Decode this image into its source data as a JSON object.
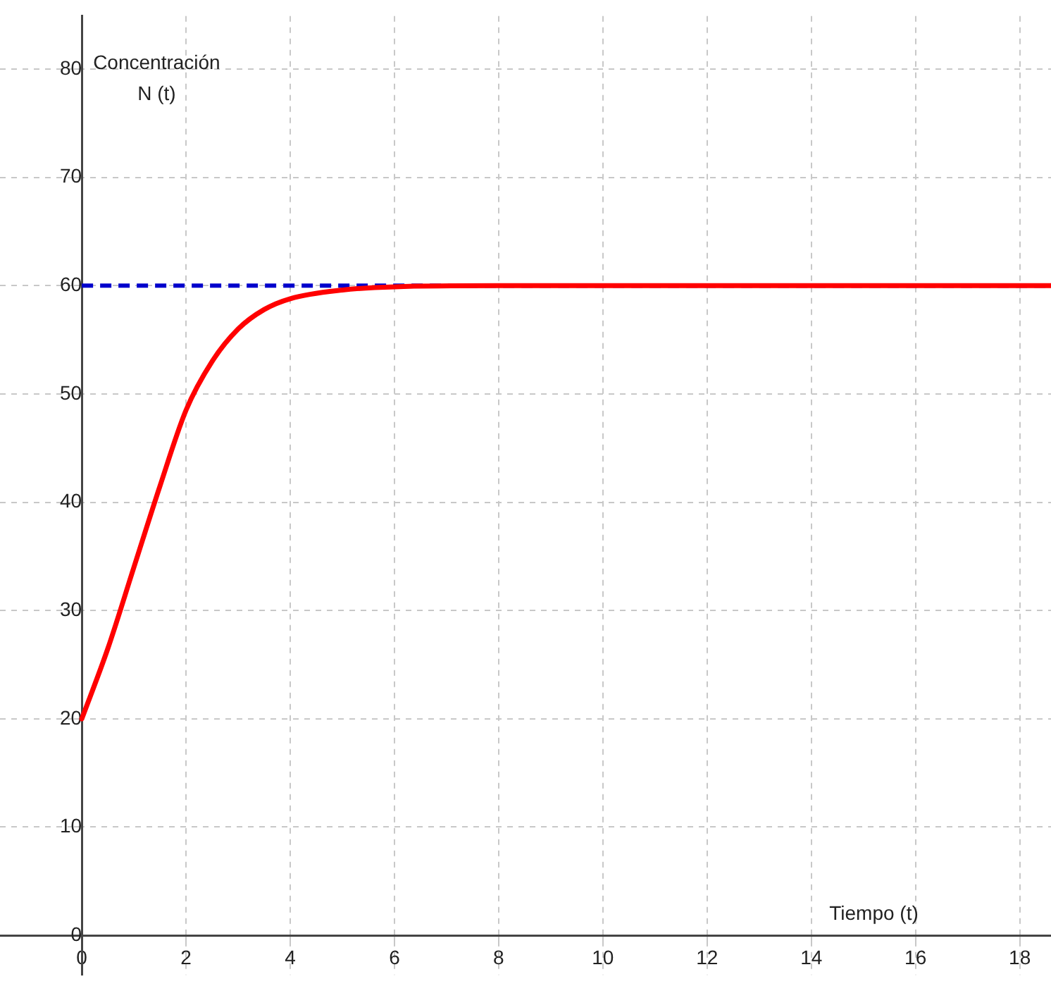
{
  "chart_data": {
    "type": "line",
    "xlabel": "Tiempo (t)",
    "ylabel": "Concentración\nN (t)",
    "x": [
      0,
      0.5,
      1,
      1.5,
      2,
      2.5,
      3,
      3.5,
      4,
      5,
      6,
      8,
      10,
      14,
      18.6
    ],
    "series": [
      {
        "color": "#ff0000",
        "values": [
          20,
          26.5,
          34,
          41.5,
          48.5,
          53,
          56,
          57.8,
          58.8,
          59.6,
          59.9,
          60,
          60,
          60,
          60
        ]
      }
    ],
    "ref_lines": [
      {
        "axis": "y",
        "value": 60,
        "color": "#0000cc",
        "line_style": "dashed"
      }
    ],
    "xlim": [
      -1.57,
      18.6
    ],
    "ylim": [
      -3.65,
      84.9
    ],
    "xticks": [
      0,
      2,
      4,
      6,
      8,
      10,
      12,
      14,
      16,
      18
    ],
    "yticks": [
      0,
      10,
      20,
      30,
      40,
      50,
      60,
      70,
      80
    ],
    "grid": true,
    "legend": false,
    "marker": "none",
    "line_style": "solid"
  }
}
